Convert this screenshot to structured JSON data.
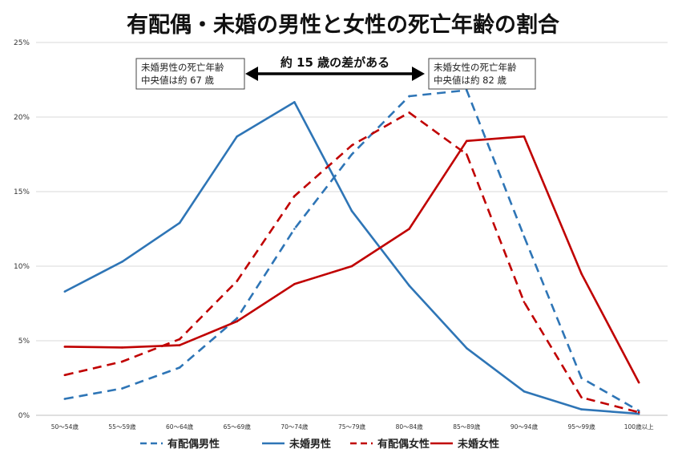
{
  "chart_data": {
    "type": "line",
    "title": "有配偶・未婚の男性と女性の死亡年齢の割合",
    "categories": [
      "50～54歳",
      "55～59歳",
      "60～64歳",
      "65～69歳",
      "70～74歳",
      "75～79歳",
      "80～84歳",
      "85～89歳",
      "90～94歳",
      "95～99歳",
      "100歳以上"
    ],
    "ylim": [
      0,
      25
    ],
    "yticks": [
      "0%",
      "5%",
      "10%",
      "15%",
      "20%",
      "25%"
    ],
    "grid": true,
    "legend_position": "bottom",
    "series": [
      {
        "name": "有配偶男性",
        "color": "#2E75B6",
        "dashed": true,
        "values": [
          1.1,
          1.8,
          3.2,
          6.5,
          12.5,
          17.5,
          21.4,
          21.8,
          12.0,
          2.5,
          0.3
        ]
      },
      {
        "name": "未婚男性",
        "color": "#2E75B6",
        "dashed": false,
        "values": [
          8.3,
          10.3,
          12.9,
          18.7,
          21.0,
          13.7,
          8.7,
          4.5,
          1.6,
          0.4,
          0.1
        ]
      },
      {
        "name": "有配偶女性",
        "color": "#C00000",
        "dashed": true,
        "values": [
          2.7,
          3.6,
          5.1,
          9.0,
          14.7,
          18.1,
          20.3,
          17.5,
          7.6,
          1.2,
          0.2
        ]
      },
      {
        "name": "未婚女性",
        "color": "#C00000",
        "dashed": false,
        "values": [
          4.6,
          4.55,
          4.7,
          6.3,
          8.8,
          10.0,
          12.5,
          18.4,
          18.7,
          9.5,
          2.2
        ]
      }
    ],
    "annotations": {
      "left_box": [
        "未婚男性の死亡年齢",
        "中央値は約 67 歳"
      ],
      "right_box": [
        "未婚女性の死亡年齢",
        "中央値は約 82 歳"
      ],
      "arrow_label": "約 15 歳の差がある"
    }
  }
}
